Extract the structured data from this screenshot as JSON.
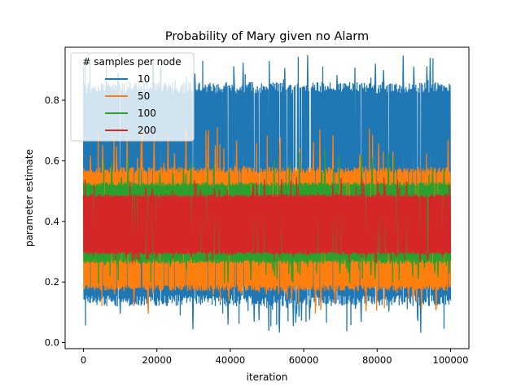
{
  "chart_data": {
    "type": "line",
    "title": "Probability of Mary given no Alarm",
    "xlabel": "iteration",
    "ylabel": "parameter estimate",
    "xlim": [
      -5000,
      105000
    ],
    "ylim": [
      -0.02,
      0.975
    ],
    "xticks": [
      0,
      20000,
      40000,
      60000,
      80000,
      100000
    ],
    "xtick_labels": [
      "0",
      "20000",
      "40000",
      "60000",
      "80000",
      "100000"
    ],
    "yticks": [
      0.0,
      0.2,
      0.4,
      0.6,
      0.8
    ],
    "ytick_labels": [
      "0.0",
      "0.2",
      "0.4",
      "0.6",
      "0.8"
    ],
    "grid": false,
    "legend": {
      "title": "# samples per node",
      "placement": "top-left"
    },
    "series": [
      {
        "name": "10",
        "color": "#1f77b4",
        "envelope_low": 0.12,
        "envelope_high": 0.86,
        "min": 0.03,
        "max": 0.95
      },
      {
        "name": "50",
        "color": "#ff7f0e",
        "envelope_low": 0.17,
        "envelope_high": 0.58,
        "min": 0.09,
        "max": 0.72
      },
      {
        "name": "100",
        "color": "#2ca02c",
        "envelope_low": 0.26,
        "envelope_high": 0.53,
        "min": 0.19,
        "max": 0.65
      },
      {
        "name": "200",
        "color": "#d62728",
        "envelope_low": 0.29,
        "envelope_high": 0.49,
        "min": 0.26,
        "max": 0.55
      }
    ]
  }
}
